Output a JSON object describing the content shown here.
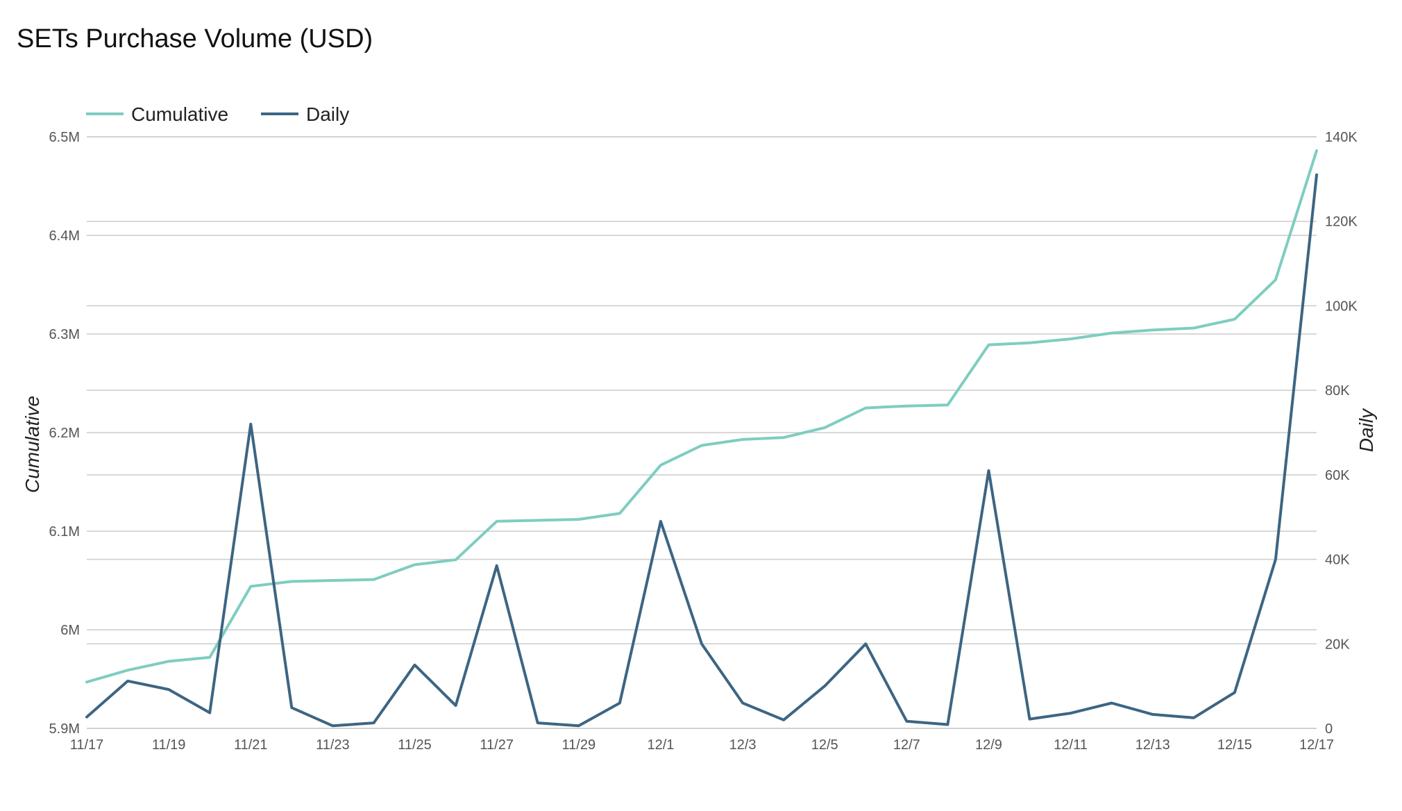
{
  "chart_data": {
    "type": "line",
    "title": "SETs Purchase Volume (USD)",
    "x": [
      "11/17",
      "11/18",
      "11/19",
      "11/20",
      "11/21",
      "11/22",
      "11/23",
      "11/24",
      "11/25",
      "11/26",
      "11/27",
      "11/28",
      "11/29",
      "11/30",
      "12/1",
      "12/2",
      "12/3",
      "12/4",
      "12/5",
      "12/6",
      "12/7",
      "12/8",
      "12/9",
      "12/10",
      "12/11",
      "12/12",
      "12/13",
      "12/14",
      "12/15",
      "12/16",
      "12/17"
    ],
    "x_tick_labels": [
      "11/17",
      "11/19",
      "11/21",
      "11/23",
      "11/25",
      "11/27",
      "11/29",
      "12/1",
      "12/3",
      "12/5",
      "12/7",
      "12/9",
      "12/11",
      "12/13",
      "12/15",
      "12/17"
    ],
    "y_left": {
      "label": "Cumulative",
      "range": [
        5900000,
        6500000
      ],
      "ticks": [
        5900000,
        6000000,
        6100000,
        6200000,
        6300000,
        6400000,
        6500000
      ],
      "tick_labels": [
        "5.9M",
        "6M",
        "6.1M",
        "6.2M",
        "6.3M",
        "6.4M",
        "6.5M"
      ]
    },
    "y_right": {
      "label": "Daily",
      "range": [
        0,
        140000
      ],
      "ticks": [
        0,
        20000,
        40000,
        60000,
        80000,
        100000,
        120000,
        140000
      ],
      "tick_labels": [
        "0",
        "20K",
        "40K",
        "60K",
        "80K",
        "100K",
        "120K",
        "140K"
      ]
    },
    "series": [
      {
        "name": "Cumulative",
        "axis": "left",
        "color": "#7ecdc0",
        "values": [
          5947000,
          5959000,
          5968000,
          5972000,
          6044000,
          6049000,
          6050000,
          6051000,
          6066000,
          6071000,
          6110000,
          6111000,
          6112000,
          6118000,
          6167000,
          6187000,
          6193000,
          6195000,
          6205000,
          6225000,
          6227000,
          6228000,
          6289000,
          6291000,
          6295000,
          6301000,
          6304000,
          6306000,
          6315000,
          6355000,
          6486000
        ]
      },
      {
        "name": "Daily",
        "axis": "right",
        "color": "#3d6583",
        "values": [
          2700,
          11200,
          9200,
          3700,
          72000,
          4900,
          600,
          1300,
          15000,
          5400,
          38500,
          1300,
          600,
          6000,
          49000,
          20000,
          6000,
          2000,
          10000,
          20000,
          1700,
          900,
          61000,
          2200,
          3600,
          6000,
          3300,
          2500,
          8500,
          40000,
          131000
        ]
      }
    ],
    "legend_position": "top-left",
    "grid": true
  }
}
